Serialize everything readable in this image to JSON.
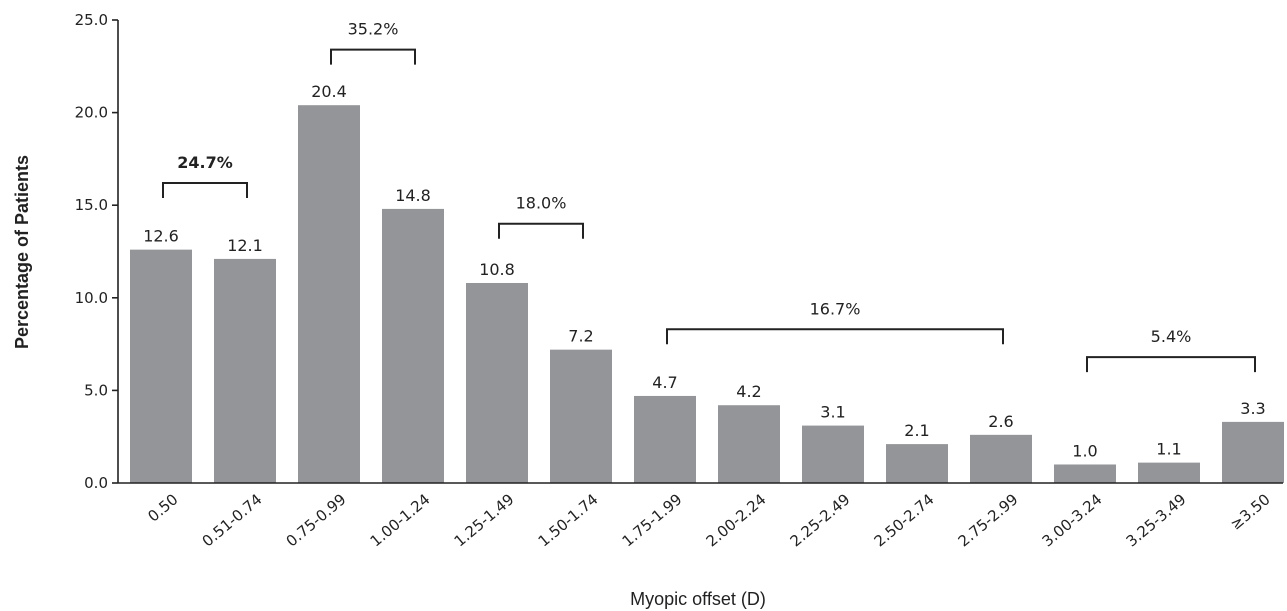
{
  "chart_data": {
    "type": "bar",
    "categories": [
      "0.50",
      "0.51-0.74",
      "0.75-0.99",
      "1.00-1.24",
      "1.25-1.49",
      "1.50-1.74",
      "1.75-1.99",
      "2.00-2.24",
      "2.25-2.49",
      "2.50-2.74",
      "2.75-2.99",
      "3.00-3.24",
      "3.25-3.49",
      "≥3.50"
    ],
    "values": [
      12.6,
      12.1,
      20.4,
      14.8,
      10.8,
      7.2,
      4.7,
      4.2,
      3.1,
      2.1,
      2.6,
      1.0,
      1.1,
      3.3
    ],
    "value_labels": [
      "12.6",
      "12.1",
      "20.4",
      "14.8",
      "10.8",
      "7.2",
      "4.7",
      "4.2",
      "3.1",
      "2.1",
      "2.6",
      "1.0",
      "1.1",
      "3.3"
    ],
    "xlabel": "Myopic offset (D)",
    "ylabel": "Percentage of Patients",
    "ylim": [
      0,
      25
    ],
    "yticks": [
      "0.0",
      "5.0",
      "10.0",
      "15.0",
      "20.0",
      "25.0"
    ],
    "grid": false,
    "bar_color": "#939598",
    "brackets": [
      {
        "label": "24.7%",
        "from": 0,
        "to": 1,
        "level": 16.2,
        "bold": true
      },
      {
        "label": "35.2%",
        "from": 2,
        "to": 3,
        "level": 23.4,
        "bold": false
      },
      {
        "label": "18.0%",
        "from": 4,
        "to": 5,
        "level": 14.0,
        "bold": false
      },
      {
        "label": "16.7%",
        "from": 6,
        "to": 10,
        "level": 8.3,
        "bold": false
      },
      {
        "label": "5.4%",
        "from": 11,
        "to": 13,
        "level": 6.8,
        "bold": false
      }
    ]
  }
}
